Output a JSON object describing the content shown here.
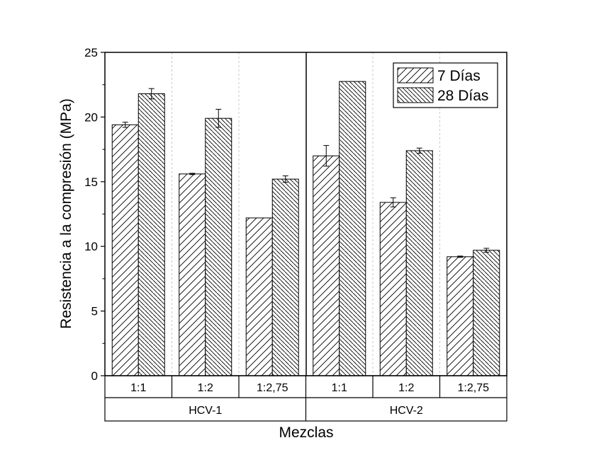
{
  "chart_data": {
    "type": "bar",
    "xlabel": "Mezclas",
    "ylabel": "Resistencia a la compresión (MPa)",
    "ylim": [
      0,
      25
    ],
    "yticks": [
      "0",
      "5",
      "10",
      "15",
      "20",
      "25"
    ],
    "categories": [
      "1:1",
      "1:2",
      "1:2,75",
      "1:1",
      "1:2",
      "1:2,75"
    ],
    "groups": [
      {
        "label": "HCV-1",
        "categories": [
          "1:1",
          "1:2",
          "1:2,75"
        ]
      },
      {
        "label": "HCV-2",
        "categories": [
          "1:1",
          "1:2",
          "1:2,75"
        ]
      }
    ],
    "series": [
      {
        "name": "7 Días",
        "values": [
          19.4,
          15.6,
          12.2,
          17.0,
          13.4,
          9.2
        ],
        "errors": [
          0.2,
          0.05,
          0.0,
          0.8,
          0.35,
          0.05
        ]
      },
      {
        "name": "28 Días",
        "values": [
          21.8,
          19.9,
          15.2,
          22.75,
          17.4,
          9.7
        ],
        "errors": [
          0.4,
          0.7,
          0.25,
          0.0,
          0.2,
          0.15
        ]
      }
    ],
    "legend_position": "top-right",
    "grid": false,
    "colors": {
      "bar_fill": "#ffffff",
      "stroke": "#000000",
      "separator": "#c8c8c8"
    }
  }
}
